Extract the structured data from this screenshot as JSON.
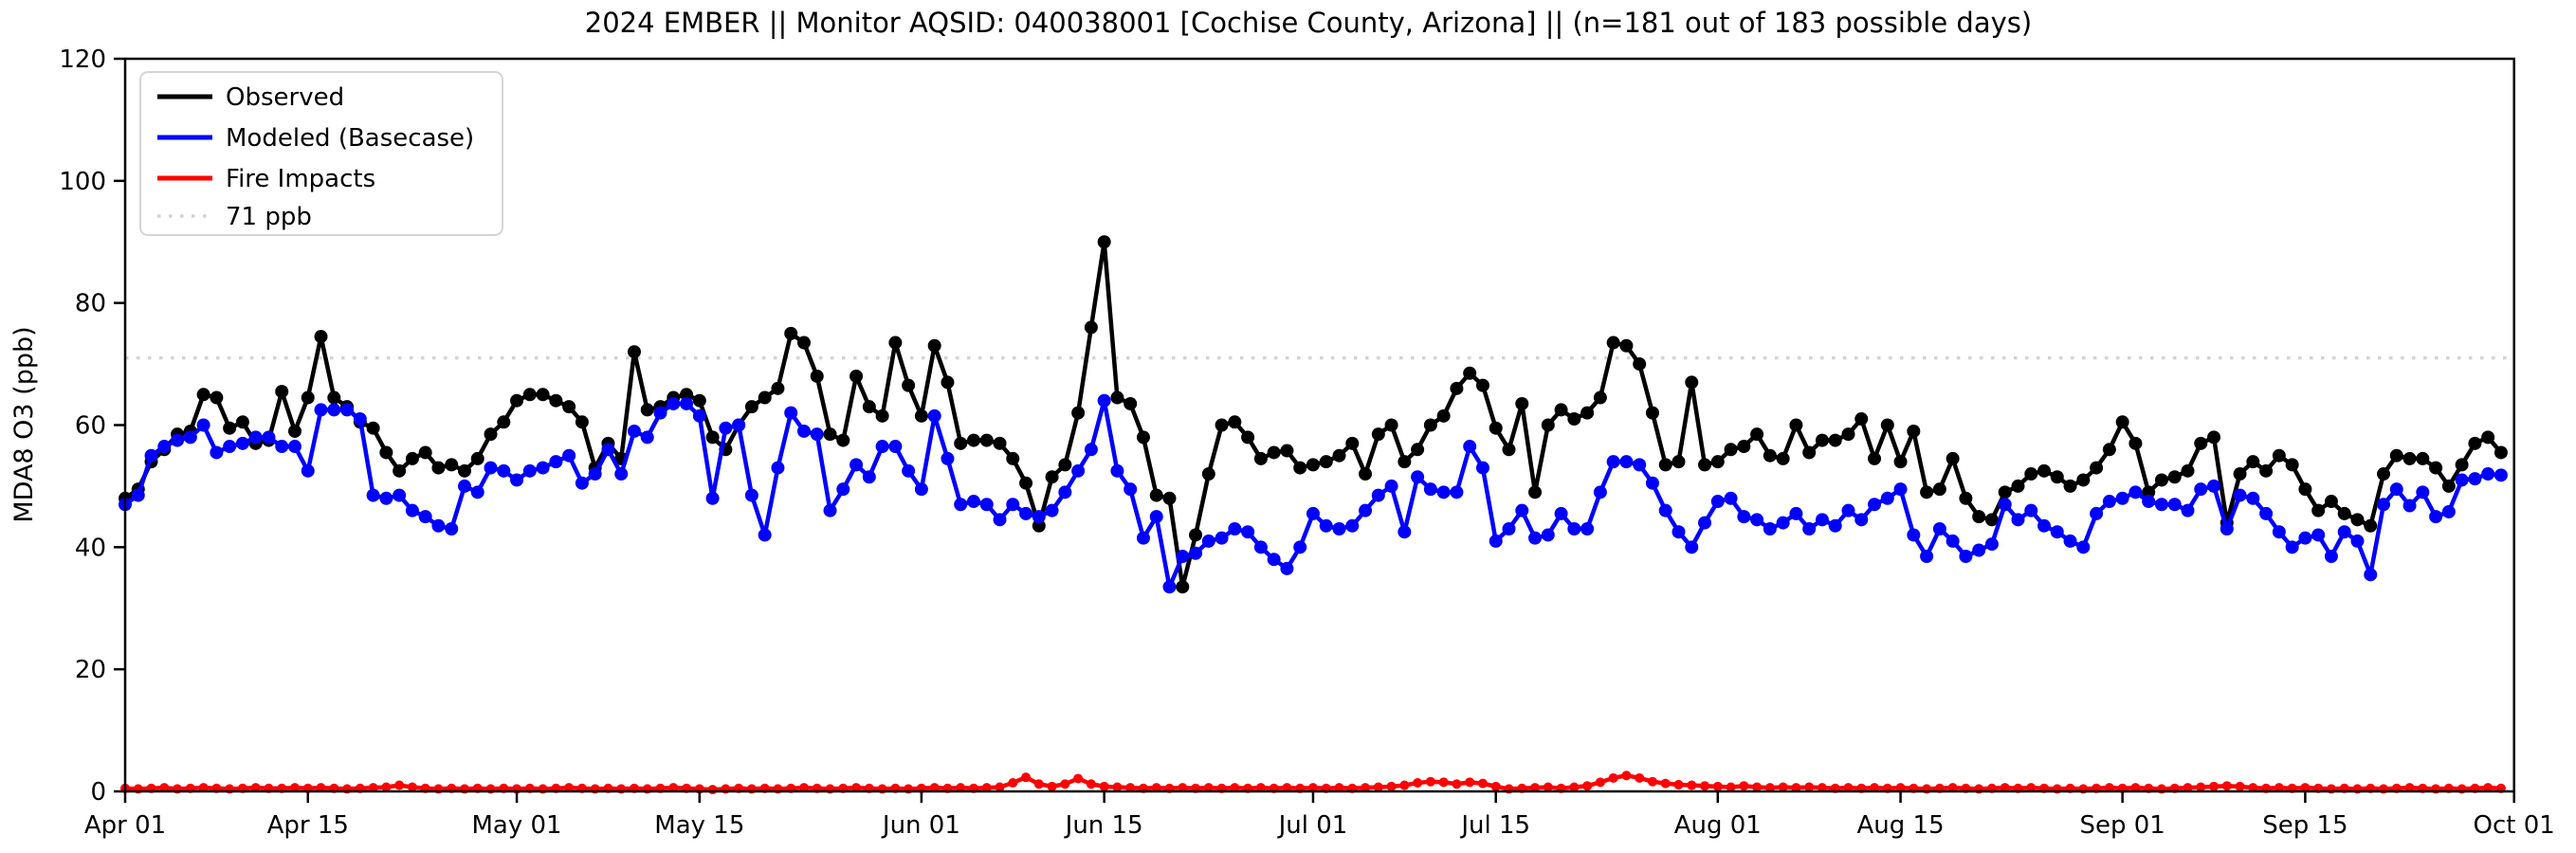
{
  "title": "2024 EMBER || Monitor AQSID: 040038001 [Cochise County, Arizona] || (n=181 out of 183 possible days)",
  "axes": {
    "ylabel": "MDA8 O3 (ppb)",
    "ylim": [
      0,
      120
    ],
    "yticks": [
      0,
      20,
      40,
      60,
      80,
      100,
      120
    ],
    "xticks": [
      {
        "label": "Apr 01",
        "day": 0
      },
      {
        "label": "Apr 15",
        "day": 14
      },
      {
        "label": "May 01",
        "day": 30
      },
      {
        "label": "May 15",
        "day": 44
      },
      {
        "label": "Jun 01",
        "day": 61
      },
      {
        "label": "Jun 15",
        "day": 75
      },
      {
        "label": "Jul 01",
        "day": 91
      },
      {
        "label": "Jul 15",
        "day": 105
      },
      {
        "label": "Aug 01",
        "day": 122
      },
      {
        "label": "Aug 15",
        "day": 136
      },
      {
        "label": "Sep 01",
        "day": 153
      },
      {
        "label": "Sep 15",
        "day": 167
      },
      {
        "label": "Oct 01",
        "day": 183
      }
    ]
  },
  "legend": {
    "items": [
      {
        "label": "Observed",
        "color": "#000000",
        "style": "solid"
      },
      {
        "label": "Modeled (Basecase)",
        "color": "#0000ff",
        "style": "solid"
      },
      {
        "label": "Fire Impacts",
        "color": "#ff0000",
        "style": "solid"
      },
      {
        "label": "71 ppb",
        "color": "#d3d3d3",
        "style": "dotted"
      }
    ]
  },
  "chart_data": {
    "type": "line",
    "title": "2024 EMBER || Monitor AQSID: 040038001 [Cochise County, Arizona] || (n=181 out of 183 possible days)",
    "xlabel": "",
    "ylabel": "MDA8 O3 (ppb)",
    "ylim": [
      0,
      120
    ],
    "x_start_date": "2024-04-01",
    "x_end_date": "2024-09-30",
    "days_shown": 183,
    "n_label": "n=181 out of 183 possible days",
    "grid": false,
    "legend_position": "upper left",
    "reference_line": {
      "label": "71 ppb",
      "value": 71,
      "color": "#d3d3d3",
      "style": "dotted"
    },
    "series": [
      {
        "name": "Observed",
        "color": "#000000",
        "marker": "circle",
        "values": [
          48,
          49.5,
          54,
          56,
          58.5,
          59,
          65,
          64.5,
          59.5,
          60.5,
          57,
          57.5,
          65.5,
          59,
          64.5,
          74.5,
          64.5,
          63,
          60.5,
          59.5,
          55.5,
          52.5,
          54.5,
          55.5,
          53,
          53.5,
          52.5,
          54.5,
          58.5,
          60.5,
          64,
          65,
          65,
          64,
          63,
          60.5,
          53,
          57,
          54.5,
          72,
          62.5,
          63,
          64.5,
          65,
          64,
          58,
          56,
          60,
          63,
          64.5,
          66,
          75,
          73.5,
          68,
          58.5,
          57.5,
          68,
          63,
          61.5,
          73.5,
          66.5,
          61.5,
          73,
          67,
          57,
          57.5,
          57.5,
          57,
          54.5,
          50.5,
          43.5,
          51.5,
          53.5,
          62,
          76,
          90,
          64.5,
          63.5,
          58,
          48.5,
          48,
          33.5,
          42,
          52,
          60,
          60.5,
          58,
          54.5,
          55.5,
          55.8,
          53,
          53.5,
          54,
          55,
          57,
          52,
          58.5,
          60,
          54,
          56,
          60,
          61.5,
          66,
          68.5,
          66.5,
          59.5,
          56,
          63.5,
          49,
          60,
          62.5,
          61,
          62,
          64.5,
          73.5,
          73,
          70,
          62,
          53.5,
          54,
          67,
          53.5,
          54,
          56,
          56.5,
          58.5,
          55,
          54.5,
          60,
          55.5,
          57.5,
          57.5,
          58.5,
          61,
          54.5,
          60,
          54,
          59,
          49,
          49.5,
          54.5,
          48,
          45,
          44.5,
          49,
          50,
          52,
          52.5,
          51.5,
          50,
          51,
          53,
          56,
          60.5,
          57,
          49,
          51,
          51.5,
          52.5,
          57,
          58,
          44,
          52,
          54,
          52.5,
          55,
          53.5,
          49.5,
          46,
          47.5,
          45.5,
          44.5,
          43.5,
          52,
          55,
          54.5,
          54.5,
          53,
          50,
          53.5,
          57,
          58,
          55.5
        ]
      },
      {
        "name": "Modeled (Basecase)",
        "color": "#0000ff",
        "marker": "circle",
        "values": [
          47,
          48.5,
          55,
          56.5,
          57.5,
          58,
          60,
          55.5,
          56.5,
          57,
          58,
          58,
          56.5,
          56.5,
          52.5,
          62.5,
          62.5,
          62.5,
          61,
          48.5,
          48,
          48.5,
          46,
          45,
          43.5,
          43,
          50,
          49,
          53,
          52.5,
          51,
          52.5,
          53,
          54,
          55,
          50.5,
          52,
          56,
          52,
          59,
          58,
          62,
          63.5,
          63.5,
          61.5,
          48,
          59.5,
          60,
          48.5,
          42,
          53,
          62,
          59,
          58.5,
          46,
          49.5,
          53.5,
          51.5,
          56.5,
          56.5,
          52.5,
          49.5,
          61.5,
          54.5,
          47,
          47.5,
          47,
          44.5,
          47,
          45.5,
          45,
          46,
          49,
          52.5,
          56,
          64,
          52.5,
          49.5,
          41.5,
          45,
          33.5,
          38.5,
          39,
          41,
          41.5,
          43,
          42.5,
          40,
          38,
          36.5,
          40,
          45.5,
          43.5,
          43,
          43.5,
          46,
          48.5,
          50,
          42.5,
          51.5,
          49.5,
          49,
          49,
          56.5,
          53,
          41,
          43,
          46,
          41.5,
          42,
          45.5,
          43,
          43,
          49,
          54,
          54,
          53.5,
          50.5,
          46,
          42.5,
          40,
          44,
          47.5,
          48,
          45,
          44.5,
          43,
          44,
          45.5,
          43,
          44.5,
          43.5,
          46,
          44.5,
          47,
          48,
          49.5,
          42,
          38.5,
          43,
          41,
          38.5,
          39.5,
          40.5,
          47,
          44.5,
          46,
          43.5,
          42.5,
          41,
          40,
          45.5,
          47.5,
          48,
          49,
          47.5,
          47,
          47,
          46,
          49.5,
          50,
          43,
          48.5,
          48,
          45.5,
          42.5,
          40,
          41.5,
          42,
          38.5,
          42.5,
          41,
          35.5,
          47,
          49.5,
          46.8,
          49,
          45,
          45.8,
          51,
          51.2,
          52,
          51.8
        ]
      },
      {
        "name": "Fire Impacts",
        "color": "#ff0000",
        "marker": "circle",
        "values": [
          0.5,
          0.4,
          0.5,
          0.6,
          0.4,
          0.5,
          0.6,
          0.5,
          0.4,
          0.5,
          0.6,
          0.5,
          0.5,
          0.6,
          0.5,
          0.6,
          0.5,
          0.4,
          0.5,
          0.6,
          0.7,
          1.0,
          0.7,
          0.5,
          0.4,
          0.5,
          0.4,
          0.5,
          0.4,
          0.5,
          0.4,
          0.5,
          0.4,
          0.5,
          0.6,
          0.5,
          0.4,
          0.5,
          0.4,
          0.5,
          0.4,
          0.5,
          0.6,
          0.5,
          0.4,
          0.3,
          0.4,
          0.5,
          0.4,
          0.5,
          0.4,
          0.5,
          0.6,
          0.5,
          0.4,
          0.5,
          0.6,
          0.5,
          0.4,
          0.5,
          0.4,
          0.5,
          0.6,
          0.5,
          0.6,
          0.5,
          0.6,
          0.7,
          1.4,
          2.3,
          1.2,
          0.8,
          1.2,
          2.1,
          1.2,
          0.8,
          0.7,
          0.6,
          0.5,
          0.6,
          0.5,
          0.6,
          0.5,
          0.6,
          0.5,
          0.6,
          0.5,
          0.6,
          0.5,
          0.6,
          0.5,
          0.6,
          0.5,
          0.6,
          0.5,
          0.6,
          0.7,
          0.8,
          1.0,
          1.4,
          1.6,
          1.5,
          1.2,
          1.5,
          1.3,
          0.8,
          0.4,
          0.5,
          0.6,
          0.7,
          0.5,
          0.7,
          0.9,
          1.5,
          2.2,
          2.6,
          2.2,
          1.6,
          1.3,
          1.1,
          1.0,
          0.9,
          0.8,
          0.7,
          0.9,
          0.7,
          0.6,
          0.7,
          0.6,
          0.7,
          0.6,
          0.5,
          0.6,
          0.5,
          0.6,
          0.5,
          0.6,
          0.5,
          0.4,
          0.5,
          0.6,
          0.5,
          0.4,
          0.5,
          0.6,
          0.5,
          0.6,
          0.5,
          0.4,
          0.5,
          0.4,
          0.5,
          0.6,
          0.5,
          0.6,
          0.5,
          0.4,
          0.5,
          0.6,
          0.7,
          0.8,
          0.9,
          0.8,
          0.6,
          0.5,
          0.6,
          0.5,
          0.6,
          0.5,
          0.4,
          0.5,
          0.4,
          0.5,
          0.4,
          0.5,
          0.6,
          0.5,
          0.4,
          0.5,
          0.4,
          0.5,
          0.6,
          0.5
        ]
      }
    ]
  }
}
